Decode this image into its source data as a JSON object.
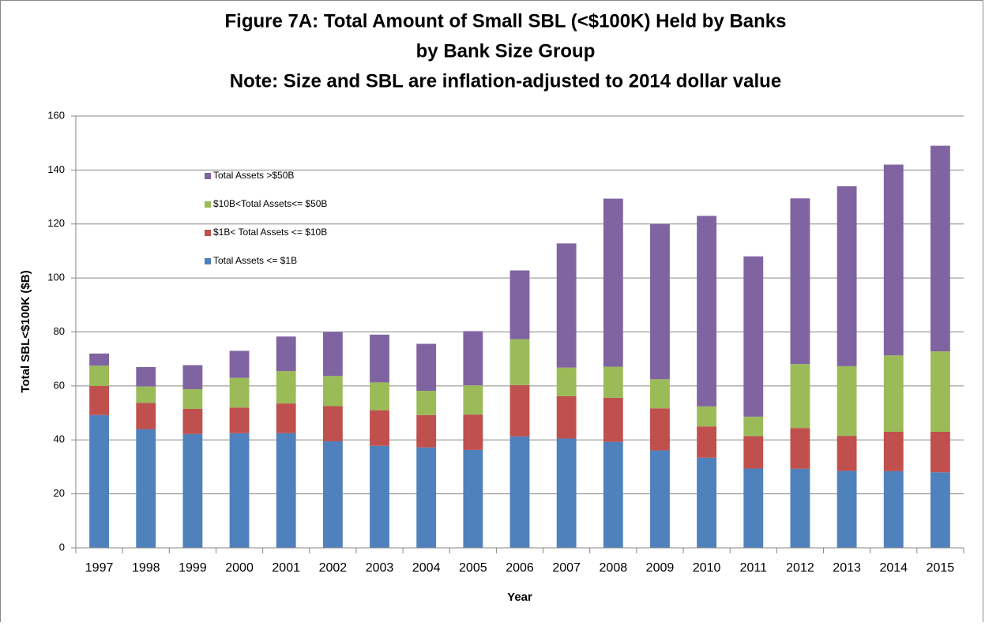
{
  "chart_data": {
    "type": "stacked_bar",
    "title": [
      "Figure 7A:  Total Amount of Small SBL (<$100K) Held by Banks",
      "by Bank Size Group",
      "Note: Size and SBL are inflation-adjusted to 2014 dollar value"
    ],
    "xlabel": "Year",
    "ylabel": "Total SBL<$100K ($B)",
    "categories": [
      "1997",
      "1998",
      "1999",
      "2000",
      "2001",
      "2002",
      "2003",
      "2004",
      "2005",
      "2006",
      "2007",
      "2008",
      "2009",
      "2010",
      "2011",
      "2012",
      "2013",
      "2014",
      "2015"
    ],
    "series": [
      {
        "name": "Total Assets <= $1B",
        "color": "#4f81bd",
        "values": [
          49.2,
          44,
          42.2,
          42.5,
          42.5,
          39.5,
          37.8,
          37.2,
          36.3,
          41.3,
          40.5,
          39.3,
          36.1,
          33.4,
          29.4,
          29.3,
          28.5,
          28.4,
          28
        ]
      },
      {
        "name": "$1B< Total Assets <= $10B",
        "color": "#c0504d",
        "values": [
          10.8,
          9.7,
          9.3,
          9.5,
          11,
          13,
          13.2,
          12,
          13.1,
          19,
          15.7,
          16.3,
          15.6,
          11.6,
          12,
          15.1,
          13,
          14.6,
          15
        ]
      },
      {
        "name": "$10B<Total Assets<= $50B",
        "color": "#9bbb59",
        "values": [
          7.5,
          6.1,
          7.3,
          11,
          12,
          11.2,
          10.3,
          9,
          10.8,
          17,
          10.6,
          11.5,
          10.8,
          7.4,
          7.2,
          23.7,
          25.8,
          28.3,
          29.8
        ]
      },
      {
        "name": "Total Assets >$50B",
        "color": "#8064a2",
        "values": [
          4.5,
          7.2,
          8.9,
          10,
          12.8,
          16.3,
          17.7,
          17.4,
          20.1,
          25.5,
          46,
          62.3,
          57.5,
          70.6,
          59.4,
          61.4,
          66.7,
          70.7,
          76.2
        ]
      }
    ],
    "ylim": [
      0,
      160
    ],
    "yticks": [
      0,
      20,
      40,
      60,
      80,
      100,
      120,
      140,
      160
    ],
    "grid": true,
    "legend": "upper left"
  }
}
